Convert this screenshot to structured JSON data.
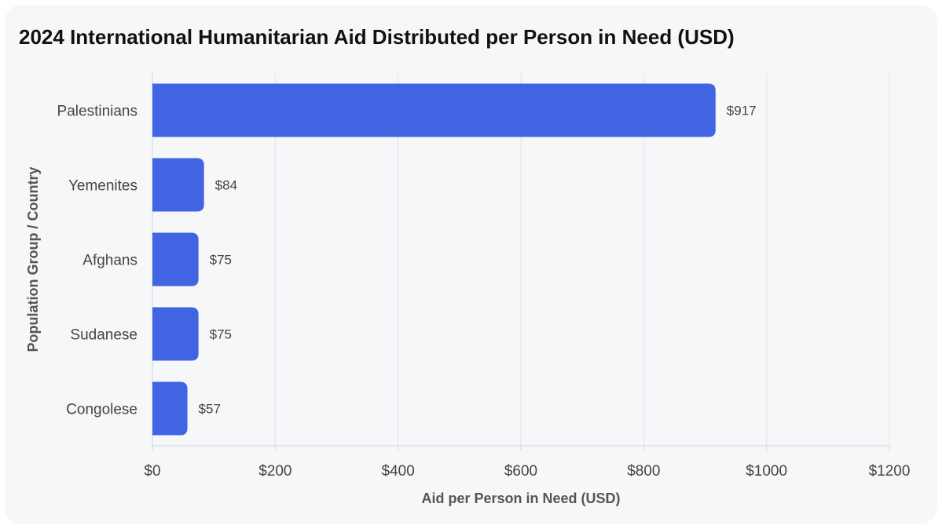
{
  "chart_data": {
    "type": "bar",
    "orientation": "horizontal",
    "title": "2024 International Humanitarian Aid Distributed per Person in Need (USD)",
    "xlabel": "Aid per Person in Need (USD)",
    "ylabel": "Population Group / Country",
    "categories": [
      "Palestinians",
      "Yemenites",
      "Afghans",
      "Sudanese",
      "Congolese"
    ],
    "values": [
      917,
      84,
      75,
      75,
      57
    ],
    "value_labels": [
      "$917",
      "$84",
      "$75",
      "$75",
      "$57"
    ],
    "xlim": [
      0,
      1200
    ],
    "x_ticks": [
      0,
      200,
      400,
      600,
      800,
      1000,
      1200
    ],
    "x_tick_labels": [
      "$0",
      "$200",
      "$400",
      "$600",
      "$800",
      "$1000",
      "$1200"
    ],
    "grid": "vertical",
    "bar_color": "#4164e3"
  }
}
